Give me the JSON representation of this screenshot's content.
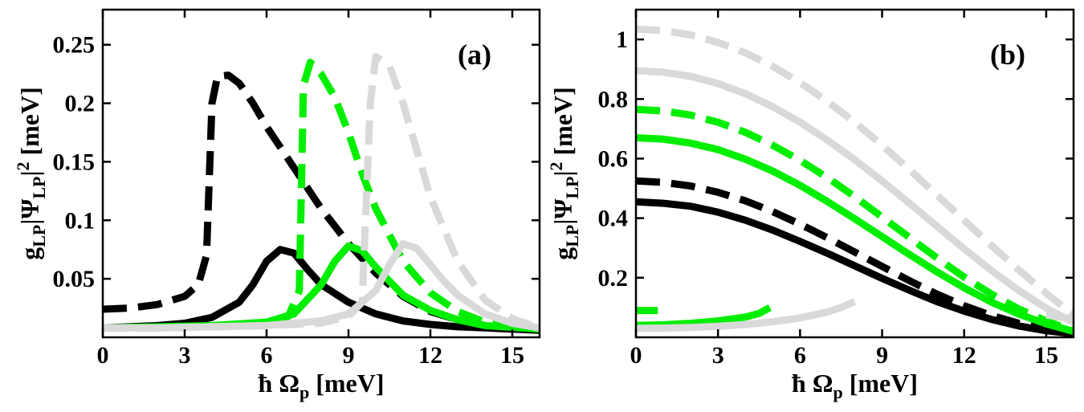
{
  "chart_data": [
    {
      "panel": "(a)",
      "type": "line",
      "xlabel": "ħ Ω_p [meV]",
      "ylabel": "g_LP|Ψ_LP|^2 [meV]",
      "xlim": [
        0,
        16
      ],
      "ylim": [
        0,
        0.28
      ],
      "xticks": [
        "0",
        "3",
        "6",
        "9",
        "12",
        "15"
      ],
      "yticks": [
        "0.05",
        "0.1",
        "0.15",
        "0.2",
        "0.25"
      ],
      "series": [
        {
          "name": "black-solid",
          "color": "#000000",
          "style": "solid",
          "x": [
            0,
            1,
            2,
            3,
            4,
            5,
            5.5,
            6,
            6.5,
            7,
            7.5,
            8,
            9,
            10,
            11,
            12,
            13,
            14,
            16
          ],
          "y": [
            0.008,
            0.009,
            0.01,
            0.012,
            0.017,
            0.03,
            0.045,
            0.065,
            0.075,
            0.072,
            0.058,
            0.045,
            0.03,
            0.02,
            0.014,
            0.011,
            0.009,
            0.008,
            0.006
          ]
        },
        {
          "name": "black-dashed",
          "color": "#000000",
          "style": "dashed",
          "x": [
            0,
            1,
            2,
            3,
            3.5,
            3.8,
            4.0,
            4.2,
            4.6,
            5,
            5.5,
            6,
            7,
            8,
            9,
            10,
            11,
            12,
            13,
            14,
            16
          ],
          "y": [
            0.024,
            0.025,
            0.028,
            0.035,
            0.045,
            0.07,
            0.2,
            0.223,
            0.224,
            0.217,
            0.2,
            0.18,
            0.145,
            0.11,
            0.08,
            0.055,
            0.035,
            0.022,
            0.015,
            0.01,
            0.006
          ]
        },
        {
          "name": "green-solid",
          "color": "#00ee00",
          "style": "solid",
          "x": [
            0,
            2,
            4,
            6,
            7,
            8,
            8.5,
            9,
            9.5,
            10,
            10.5,
            11,
            12,
            13,
            14,
            16
          ],
          "y": [
            0.008,
            0.009,
            0.01,
            0.013,
            0.02,
            0.045,
            0.065,
            0.078,
            0.074,
            0.06,
            0.048,
            0.036,
            0.023,
            0.015,
            0.01,
            0.007
          ]
        },
        {
          "name": "green-dashed",
          "color": "#00ee00",
          "style": "dashed",
          "x": [
            0,
            2,
            4,
            6,
            6.8,
            7.2,
            7.35,
            7.6,
            8,
            8.5,
            9,
            9.5,
            10,
            11,
            12,
            13,
            14,
            15,
            16
          ],
          "y": [
            0.008,
            0.008,
            0.009,
            0.01,
            0.018,
            0.04,
            0.215,
            0.235,
            0.225,
            0.205,
            0.175,
            0.14,
            0.11,
            0.065,
            0.038,
            0.022,
            0.013,
            0.009,
            0.007
          ]
        },
        {
          "name": "gray-solid",
          "color": "#d9d9d9",
          "style": "solid",
          "x": [
            0,
            2,
            4,
            6,
            8,
            9,
            10,
            10.5,
            11,
            11.5,
            12,
            12.5,
            13,
            14,
            15,
            16
          ],
          "y": [
            0.008,
            0.008,
            0.009,
            0.01,
            0.014,
            0.02,
            0.04,
            0.062,
            0.08,
            0.076,
            0.062,
            0.048,
            0.036,
            0.02,
            0.012,
            0.008
          ]
        },
        {
          "name": "gray-dashed",
          "color": "#d9d9d9",
          "style": "dashed",
          "x": [
            0,
            2,
            4,
            6,
            8,
            9,
            9.5,
            9.8,
            10,
            10.5,
            11,
            11.5,
            12,
            13,
            14,
            15,
            16
          ],
          "y": [
            0.008,
            0.008,
            0.009,
            0.01,
            0.012,
            0.018,
            0.03,
            0.2,
            0.24,
            0.232,
            0.2,
            0.16,
            0.12,
            0.065,
            0.032,
            0.016,
            0.008
          ]
        }
      ]
    },
    {
      "panel": "(b)",
      "type": "line",
      "xlabel": "ħ Ω_p [meV]",
      "ylabel": "g_LP|Ψ_LP|^2 [meV]",
      "xlim": [
        0,
        16
      ],
      "ylim": [
        0,
        1.1
      ],
      "xticks": [
        "0",
        "3",
        "6",
        "9",
        "12",
        "15"
      ],
      "yticks": [
        "0.2",
        "0.4",
        "0.6",
        "0.8",
        "1"
      ],
      "series": [
        {
          "name": "black-solid",
          "color": "#000000",
          "style": "solid",
          "x": [
            0,
            1,
            2,
            3,
            4,
            5,
            6,
            7,
            8,
            9,
            10,
            11,
            12,
            13,
            14,
            15,
            16
          ],
          "y": [
            0.455,
            0.45,
            0.44,
            0.42,
            0.393,
            0.36,
            0.322,
            0.282,
            0.24,
            0.198,
            0.158,
            0.12,
            0.088,
            0.06,
            0.038,
            0.022,
            0.012
          ]
        },
        {
          "name": "black-dashed",
          "color": "#000000",
          "style": "dashed",
          "x": [
            0,
            1,
            2,
            3,
            4,
            5,
            6,
            7,
            8,
            9,
            10,
            11,
            12,
            13,
            14,
            15,
            16
          ],
          "y": [
            0.525,
            0.52,
            0.508,
            0.487,
            0.458,
            0.422,
            0.38,
            0.334,
            0.286,
            0.238,
            0.19,
            0.145,
            0.106,
            0.073,
            0.047,
            0.028,
            0.015
          ]
        },
        {
          "name": "green-solid",
          "color": "#00ee00",
          "style": "solid",
          "x": [
            0,
            1,
            2,
            3,
            4,
            5,
            6,
            7,
            8,
            9,
            10,
            11,
            12,
            13,
            14,
            15,
            16
          ],
          "y": [
            0.67,
            0.665,
            0.652,
            0.63,
            0.598,
            0.558,
            0.51,
            0.456,
            0.398,
            0.338,
            0.278,
            0.22,
            0.166,
            0.118,
            0.078,
            0.045,
            0.02
          ]
        },
        {
          "name": "green-dashed",
          "color": "#00ee00",
          "style": "dashed",
          "x": [
            0,
            1,
            2,
            3,
            4,
            5,
            6,
            7,
            8,
            9,
            10,
            11,
            12,
            13,
            14,
            15,
            16
          ],
          "y": [
            0.765,
            0.76,
            0.746,
            0.722,
            0.688,
            0.645,
            0.594,
            0.536,
            0.472,
            0.404,
            0.335,
            0.267,
            0.202,
            0.145,
            0.095,
            0.055,
            0.022
          ]
        },
        {
          "name": "gray-solid",
          "color": "#d9d9d9",
          "style": "solid",
          "x": [
            0,
            1,
            2,
            3,
            4,
            5,
            6,
            7,
            8,
            9,
            10,
            11,
            12,
            13,
            14,
            15,
            16
          ],
          "y": [
            0.895,
            0.89,
            0.876,
            0.852,
            0.818,
            0.774,
            0.722,
            0.662,
            0.596,
            0.525,
            0.45,
            0.373,
            0.297,
            0.224,
            0.157,
            0.098,
            0.05
          ]
        },
        {
          "name": "gray-dashed",
          "color": "#d9d9d9",
          "style": "dashed",
          "x": [
            0,
            1,
            2,
            3,
            4,
            5,
            6,
            7,
            8,
            9,
            10,
            11,
            12,
            13,
            14,
            15,
            16
          ],
          "y": [
            1.035,
            1.03,
            1.015,
            0.99,
            0.955,
            0.91,
            0.855,
            0.792,
            0.722,
            0.645,
            0.563,
            0.478,
            0.393,
            0.308,
            0.226,
            0.148,
            0.075
          ]
        },
        {
          "name": "green-lower-branch",
          "color": "#00ee00",
          "style": "solid",
          "x": [
            0,
            1,
            2,
            3,
            4,
            4.5,
            4.9
          ],
          "y": [
            0.04,
            0.042,
            0.047,
            0.055,
            0.068,
            0.08,
            0.1
          ]
        },
        {
          "name": "green-lower-dashed",
          "color": "#00ee00",
          "style": "dashed",
          "x": [
            0,
            0.8
          ],
          "y": [
            0.09,
            0.09
          ]
        },
        {
          "name": "gray-lower-branch",
          "color": "#d9d9d9",
          "style": "solid",
          "x": [
            0,
            1,
            2,
            3,
            4,
            5,
            6,
            7,
            7.5,
            8
          ],
          "y": [
            0.03,
            0.031,
            0.033,
            0.037,
            0.043,
            0.052,
            0.065,
            0.085,
            0.1,
            0.12
          ]
        },
        {
          "name": "gray-tail",
          "color": "#d9d9d9",
          "style": "solid",
          "x": [
            15,
            15.5,
            16
          ],
          "y": [
            0.075,
            0.068,
            0.06
          ]
        }
      ]
    }
  ]
}
